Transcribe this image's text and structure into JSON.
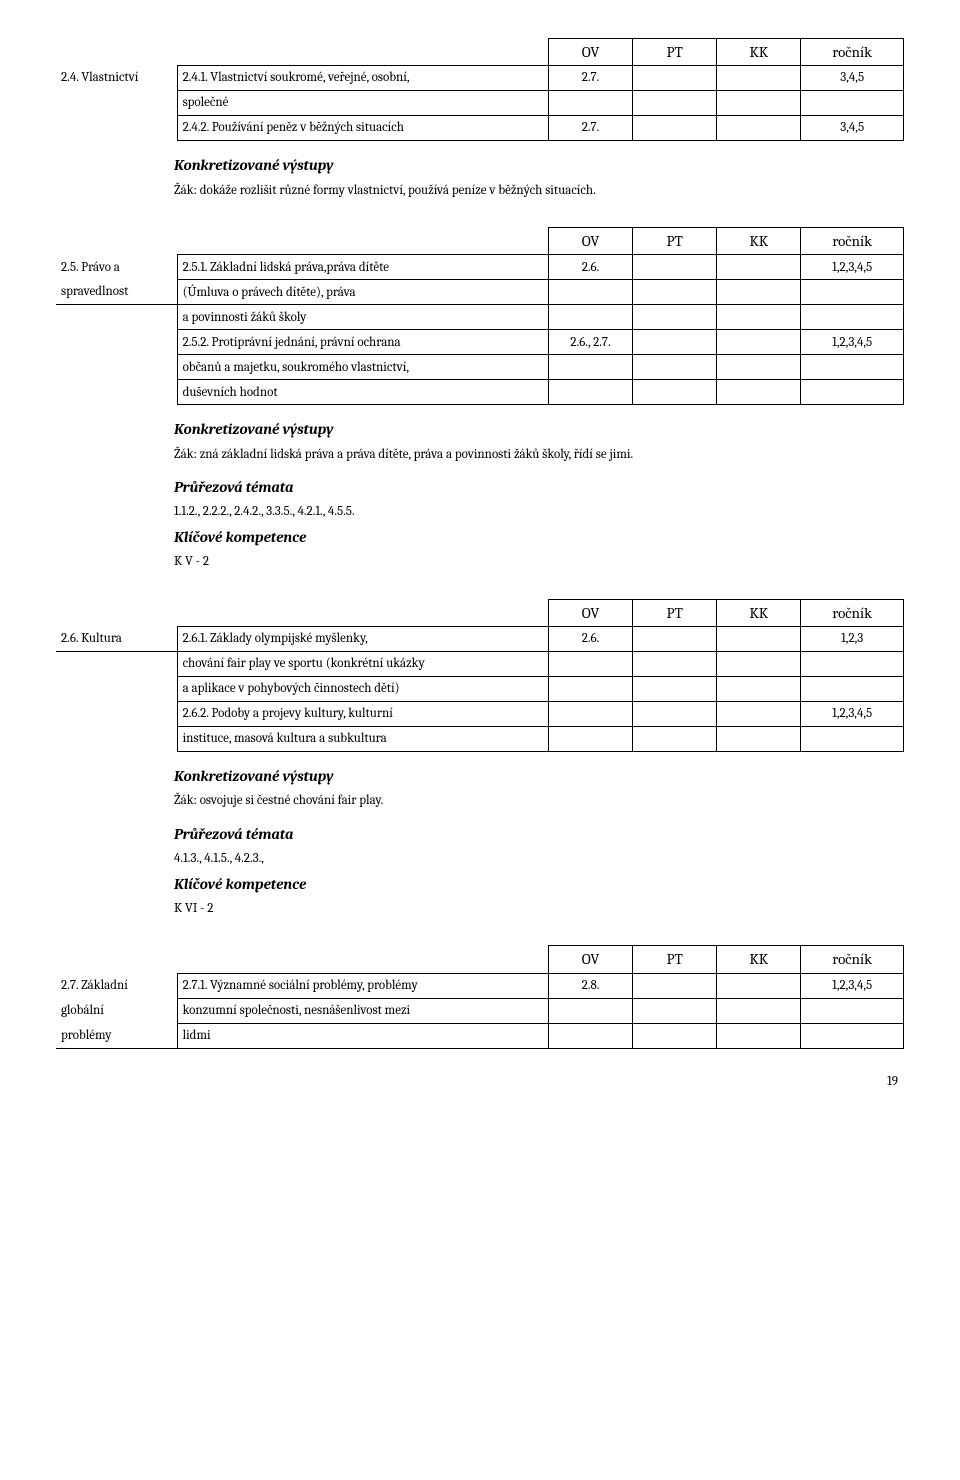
{
  "headers": {
    "ov": "OV",
    "pt": "PT",
    "kk": "KK",
    "rocnik": "ročník"
  },
  "sec24": {
    "label": "2.4. Vlastnictví",
    "r1_text": "2.4.1. Vlastnictví soukromé, veřejné, osobní,",
    "r1_ov": "2.7.",
    "r1_roc": "3,4,5",
    "r2_text": "společné",
    "r3_text": "2.4.2. Používání peněz v běžných situacích",
    "r3_ov": "2.7.",
    "r3_roc": "3,4,5",
    "kv_title": "Konkretizované výstupy",
    "kv_text": "Žák: dokáže rozlišit různé formy vlastnictví, používá peníze v běžných situacích."
  },
  "sec25": {
    "label1": "2.5. Právo a",
    "label2": "spravedlnost",
    "r1_text": "2.5.1. Základní lidská práva,práva dítěte",
    "r1_ov": "2.6.",
    "r1_roc": "1,2,3,4,5",
    "r2_text": "(Úmluva o právech dítěte), práva",
    "r3_text": "a povinnosti žáků školy",
    "r4_text": "2.5.2. Protiprávní jednání, právní ochrana",
    "r4_ov": "2.6., 2.7.",
    "r4_roc": "1,2,3,4,5",
    "r5_text": "občanů a majetku, soukromého vlastnictví,",
    "r6_text": "duševních hodnot",
    "kv_title": "Konkretizované výstupy",
    "kv_text": "Žák: zná základní lidská práva a práva dítěte, práva a povinnosti žáků školy, řídí se jimi.",
    "pt_title": "Průřezová témata",
    "pt_text": "1.1.2., 2.2.2., 2.4.2., 3.3.5., 4.2.1., 4.5.5.",
    "kk_title": "Klíčové kompetence",
    "kk_text": "K V - 2"
  },
  "sec26": {
    "label": "2.6. Kultura",
    "r1_text": "2.6.1. Základy olympijské myšlenky,",
    "r1_ov": "2.6.",
    "r1_roc": "1,2,3",
    "r2_text": "chování fair play ve sportu (konkrétní ukázky",
    "r3_text": "a aplikace v pohybových činnostech dětí)",
    "r4_text": "2.6.2. Podoby a projevy kultury, kulturní",
    "r4_roc": "1,2,3,4,5",
    "r5_text": "instituce, masová kultura a subkultura",
    "kv_title": "Konkretizované výstupy",
    "kv_text": "Žák: osvojuje si čestné chování fair play.",
    "pt_title": "Průřezová témata",
    "pt_text": "4.1.3., 4.1.5., 4.2.3.,",
    "kk_title": "Klíčové kompetence",
    "kk_text": "K VI - 2"
  },
  "sec27": {
    "label1": "2.7. Základní",
    "label2": "globální",
    "label3": "problémy",
    "r1_text": "2.7.1. Významné sociální problémy, problémy",
    "r1_ov": "2.8.",
    "r1_roc": "1,2,3,4,5",
    "r2_text": "konzumní společnosti, nesnášenlivost mezi",
    "r3_text": "lidmi"
  },
  "page": "19"
}
